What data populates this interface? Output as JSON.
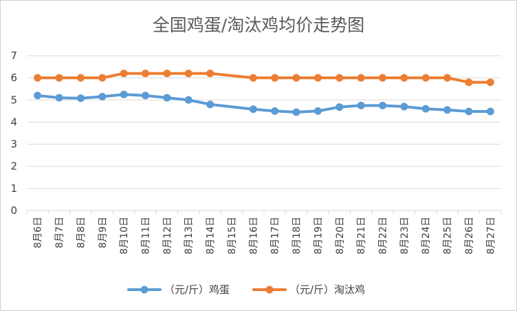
{
  "chart_data": {
    "type": "line",
    "title": "全国鸡蛋/淘汰鸡均价走势图",
    "categories": [
      "8月6日",
      "8月7日",
      "8月8日",
      "8月9日",
      "8月10日",
      "8月11日",
      "8月12日",
      "8月13日",
      "8月14日",
      "8月15日",
      "8月16日",
      "8月17日",
      "8月18日",
      "8月19日",
      "8月20日",
      "8月21日",
      "8月22日",
      "8月23日",
      "8月24日",
      "8月25日",
      "8月26日",
      "8月27日"
    ],
    "series": [
      {
        "name": "（元/斤）鸡蛋",
        "color": "#5B9BD5",
        "values": [
          5.2,
          5.1,
          5.08,
          5.15,
          5.25,
          5.2,
          5.1,
          5.0,
          4.8,
          null,
          4.58,
          4.5,
          4.45,
          4.5,
          4.68,
          4.75,
          4.75,
          4.7,
          4.6,
          4.55,
          4.48,
          4.48
        ]
      },
      {
        "name": "（元/斤）淘汰鸡",
        "color": "#ED7D31",
        "values": [
          6.0,
          6.0,
          6.0,
          6.0,
          6.2,
          6.2,
          6.2,
          6.2,
          6.2,
          null,
          6.0,
          6.0,
          6.0,
          6.0,
          6.0,
          6.0,
          6.0,
          6.0,
          6.0,
          6.0,
          5.8,
          5.8
        ]
      }
    ],
    "yticks": [
      "0",
      "1",
      "2",
      "3",
      "4",
      "5",
      "6",
      "7"
    ],
    "ylim": [
      0,
      7
    ],
    "grid": true,
    "legend_position": "bottom"
  }
}
